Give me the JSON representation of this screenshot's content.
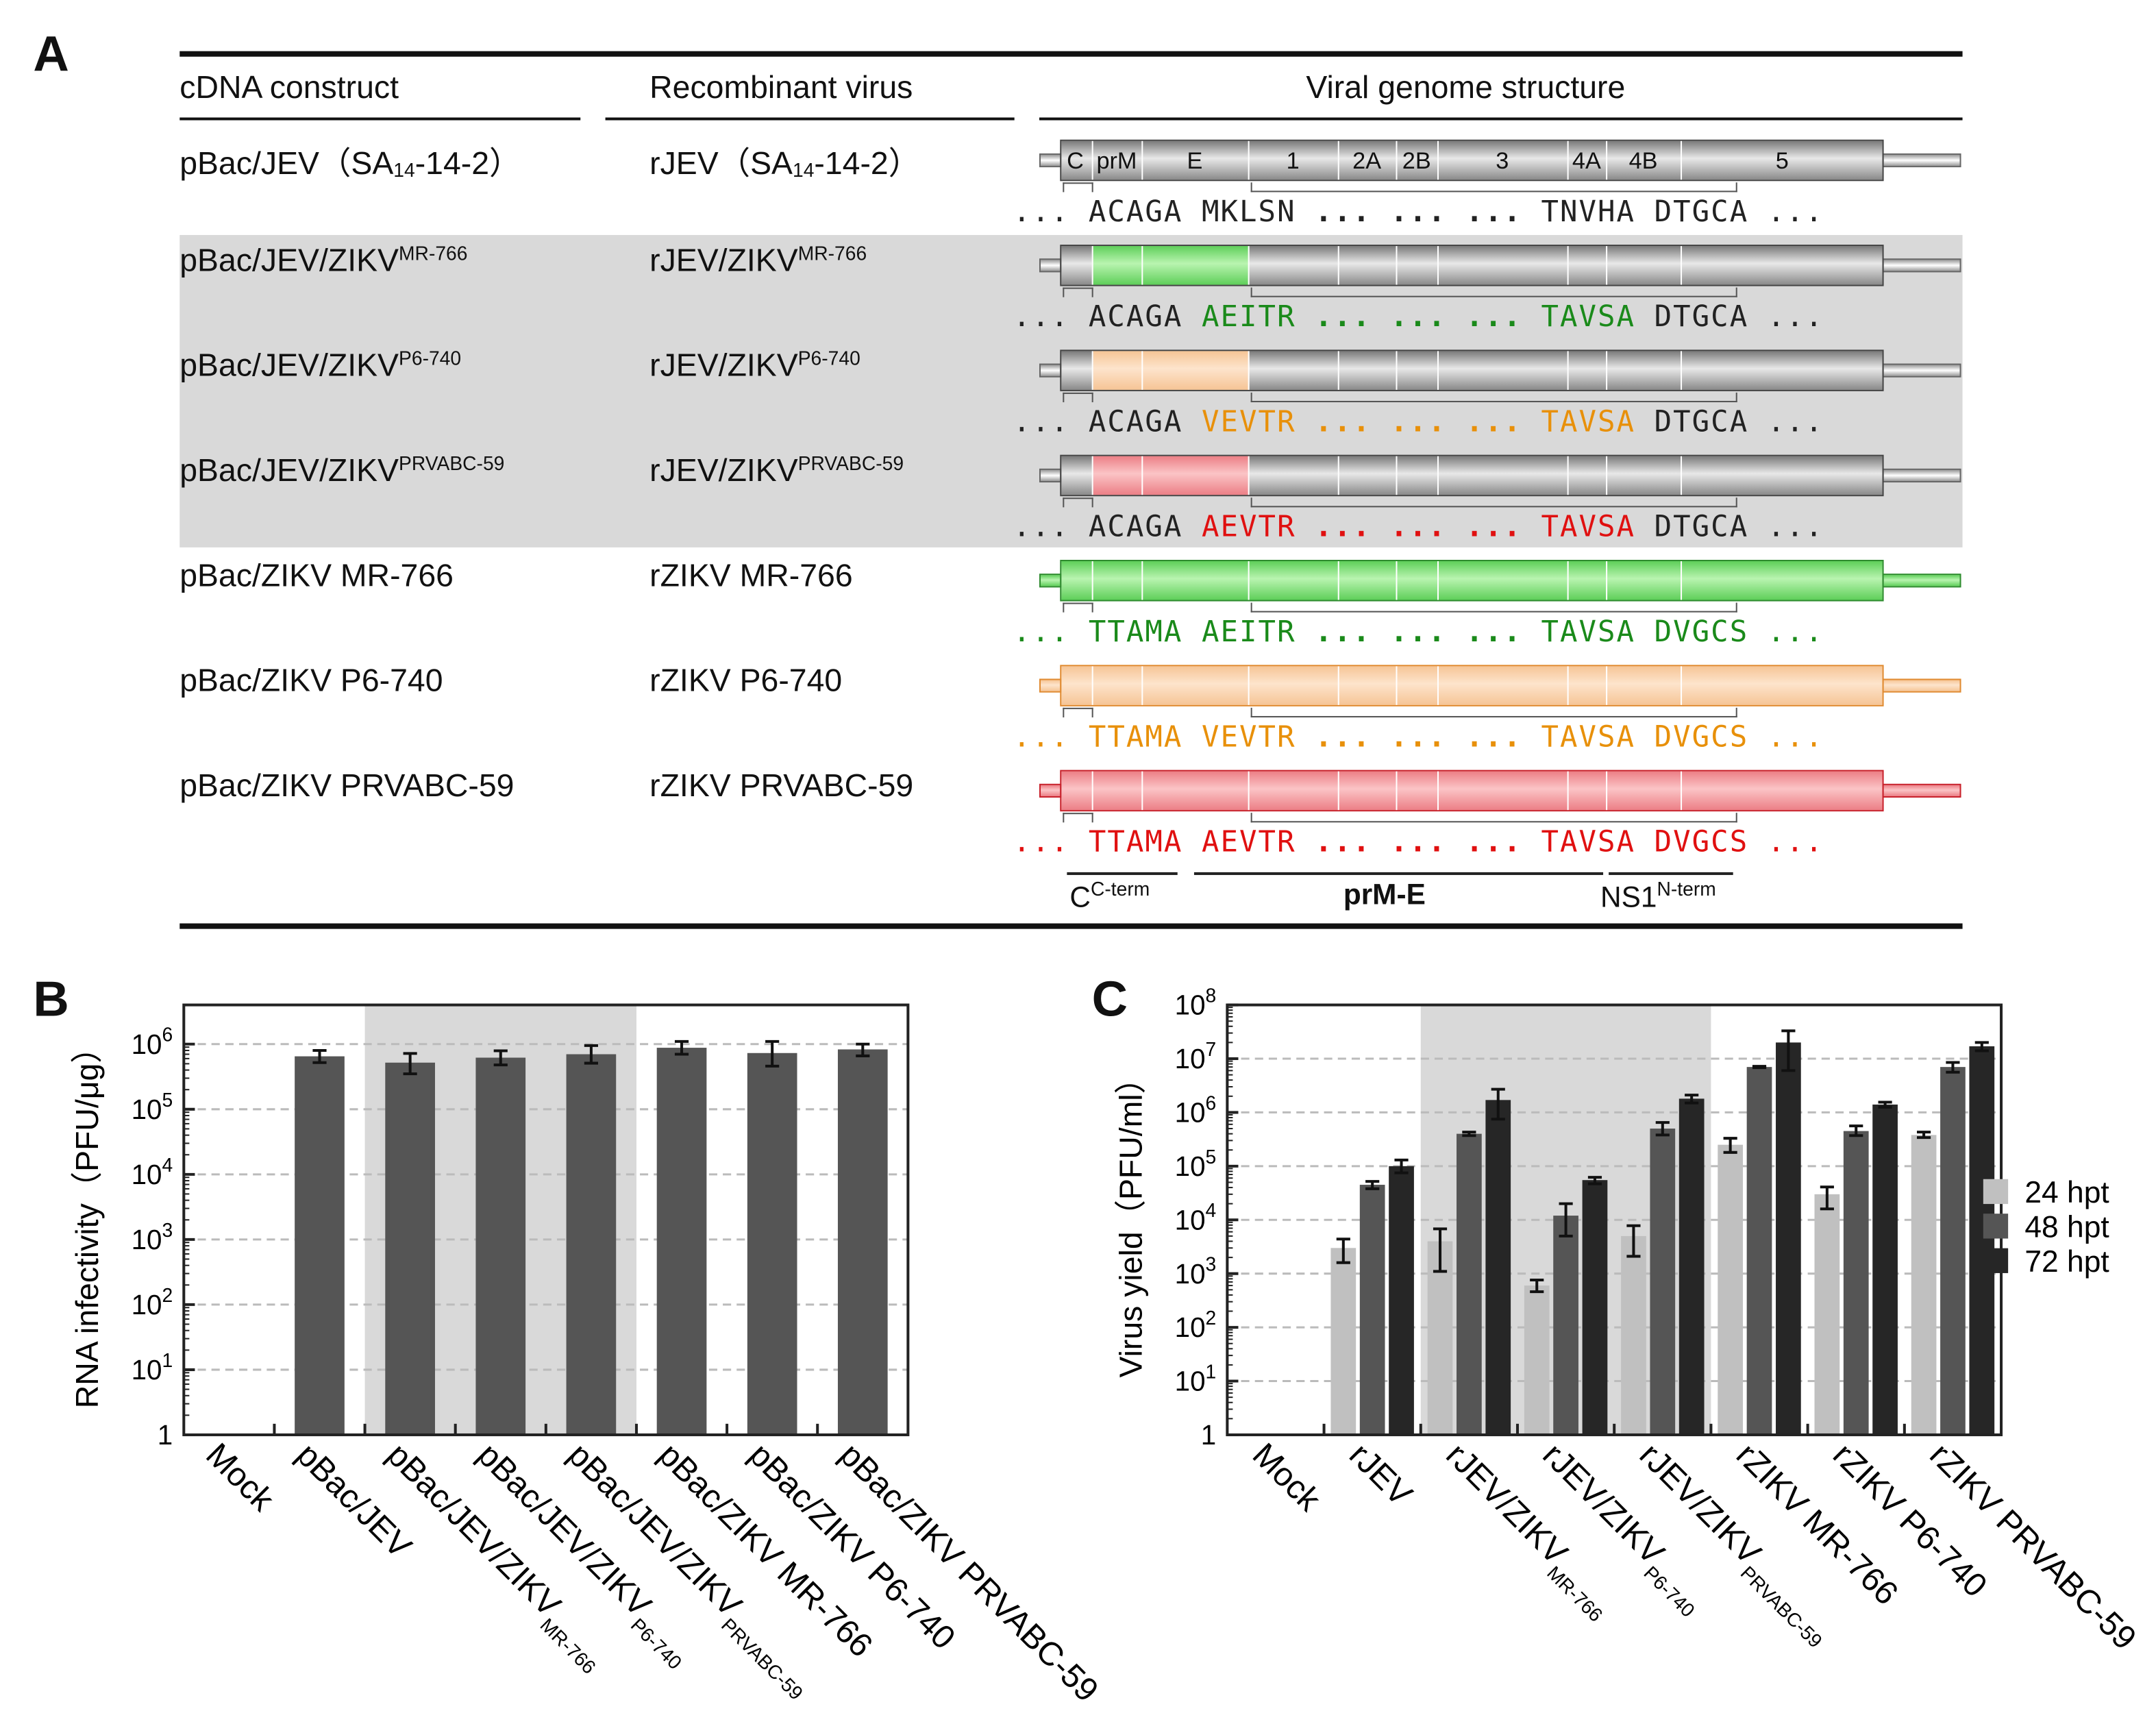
{
  "panel_a": {
    "letter": "A",
    "headers": {
      "construct": "cDNA construct",
      "virus": "Recombinant virus",
      "genome": "Viral genome structure"
    },
    "segments": [
      "C",
      "prM",
      "E",
      "1",
      "2A",
      "2B",
      "3",
      "4A",
      "4B",
      "5"
    ],
    "rows": [
      {
        "construct": "pBac/JEV（SA",
        "construct_sub": "14",
        "construct_tail": "-14-2）",
        "virus": "rJEV（SA",
        "virus_sub": "14",
        "virus_tail": "-14-2）",
        "genome": "jev",
        "color": "#888888",
        "seq": [
          "...",
          "ACAGA",
          "MKLSN",
          "... ... ...",
          "TNVHA",
          "DTGCA",
          "..."
        ],
        "seq_colored": [
          false,
          false,
          false,
          false,
          false,
          false,
          false
        ]
      },
      {
        "construct": "pBac/JEV/ZIKV",
        "construct_sup": "MR-766",
        "virus": "rJEV/ZIKV",
        "virus_sup": "MR-766",
        "genome": "chimera",
        "color": "#1a8a1a",
        "seq": [
          "...",
          "ACAGA",
          "AEITR",
          "... ... ...",
          "TAVSA",
          "DTGCA",
          "..."
        ],
        "seq_colored": [
          false,
          false,
          true,
          true,
          true,
          false,
          false
        ]
      },
      {
        "construct": "pBac/JEV/ZIKV",
        "construct_sup": "P6-740",
        "virus": "rJEV/ZIKV",
        "virus_sup": "P6-740",
        "genome": "chimera",
        "color": "#e8900a",
        "seq": [
          "...",
          "ACAGA",
          "VEVTR",
          "... ... ...",
          "TAVSA",
          "DTGCA",
          "..."
        ],
        "seq_colored": [
          false,
          false,
          true,
          true,
          true,
          false,
          false
        ]
      },
      {
        "construct": "pBac/JEV/ZIKV",
        "construct_sup": "PRVABC-59",
        "virus": "rJEV/ZIKV",
        "virus_sup": "PRVABC-59",
        "genome": "chimera",
        "color": "#e01010",
        "seq": [
          "...",
          "ACAGA",
          "AEVTR",
          "... ... ...",
          "TAVSA",
          "DTGCA",
          "..."
        ],
        "seq_colored": [
          false,
          false,
          true,
          true,
          true,
          false,
          false
        ]
      },
      {
        "construct": "pBac/ZIKV MR-766",
        "virus": "rZIKV MR-766",
        "genome": "zikv",
        "color": "#1a8a1a",
        "seq": [
          "...",
          "TTAMA",
          "AEITR",
          "... ... ...",
          "TAVSA",
          "DVGCS",
          "..."
        ],
        "seq_colored": [
          true,
          true,
          true,
          true,
          true,
          true,
          true
        ]
      },
      {
        "construct": "pBac/ZIKV P6-740",
        "virus": "rZIKV P6-740",
        "genome": "zikv",
        "color": "#e8900a",
        "seq": [
          "...",
          "TTAMA",
          "VEVTR",
          "... ... ...",
          "TAVSA",
          "DVGCS",
          "..."
        ],
        "seq_colored": [
          true,
          true,
          true,
          true,
          true,
          true,
          true
        ]
      },
      {
        "construct": "pBac/ZIKV PRVABC-59",
        "virus": "rZIKV PRVABC-59",
        "genome": "zikv",
        "color": "#e01010",
        "seq": [
          "...",
          "TTAMA",
          "AEVTR",
          "... ... ...",
          "TAVSA",
          "DVGCS",
          "..."
        ],
        "seq_colored": [
          true,
          true,
          true,
          true,
          true,
          true,
          true
        ]
      }
    ],
    "region_labels": {
      "c": "C",
      "c_sup": "C-term",
      "prme": "prM-E",
      "ns1": "NS1",
      "ns1_sup": "N-term"
    }
  },
  "chart_data": [
    {
      "panel": "B",
      "type": "bar",
      "ylabel": "RNA infectivity（PFU/μg）",
      "yscale": "log",
      "ylim": [
        1,
        4000000
      ],
      "yticks": [
        "1",
        "10^1",
        "10^2",
        "10^3",
        "10^4",
        "10^5",
        "10^6"
      ],
      "grid": "dashed horizontal",
      "categories": [
        {
          "label": "Mock"
        },
        {
          "label": "pBac/JEV"
        },
        {
          "label": "pBac/JEV/ZIKV",
          "sup": "MR-766"
        },
        {
          "label": "pBac/JEV/ZIKV",
          "sup": "P6-740"
        },
        {
          "label": "pBac/JEV/ZIKV",
          "sup": "PRVABC-59"
        },
        {
          "label": "pBac/ZIKV MR-766"
        },
        {
          "label": "pBac/ZIKV P6-740"
        },
        {
          "label": "pBac/ZIKV PRVABC-59"
        }
      ],
      "values": [
        null,
        650000,
        520000,
        620000,
        700000,
        880000,
        730000,
        830000
      ],
      "err_low": [
        null,
        520000,
        350000,
        480000,
        510000,
        700000,
        460000,
        660000
      ],
      "err_high": [
        null,
        800000,
        720000,
        790000,
        950000,
        1100000,
        1100000,
        1000000
      ],
      "shaded_categories": [
        2,
        4
      ],
      "bar_color": "#555555"
    },
    {
      "panel": "C",
      "type": "bar",
      "ylabel": "Virus yield（PFU/ml）",
      "yscale": "log",
      "ylim": [
        1,
        100000000
      ],
      "yticks": [
        "1",
        "10^1",
        "10^2",
        "10^3",
        "10^4",
        "10^5",
        "10^6",
        "10^7",
        "10^8"
      ],
      "grid": "dashed horizontal",
      "legend_position": "right",
      "categories": [
        {
          "label": "Mock"
        },
        {
          "label": "rJEV"
        },
        {
          "label": "rJEV/ZIKV",
          "sup": "MR-766"
        },
        {
          "label": "rJEV/ZIKV",
          "sup": "P6-740"
        },
        {
          "label": "rJEV/ZIKV",
          "sup": "PRVABC-59"
        },
        {
          "label": "rZIKV MR-766"
        },
        {
          "label": "rZIKV P6-740"
        },
        {
          "label": "rZIKV PRVABC-59"
        }
      ],
      "shaded_categories": [
        2,
        4
      ],
      "series": [
        {
          "name": "24 hpt",
          "color": "#c0c0c0",
          "values": [
            null,
            3000,
            4000,
            600,
            5000,
            250000,
            30000,
            380000
          ],
          "err_low": [
            null,
            1600,
            1100,
            460,
            2100,
            180000,
            16000,
            340000
          ],
          "err_high": [
            null,
            4400,
            6800,
            760,
            7800,
            330000,
            41000,
            430000
          ]
        },
        {
          "name": "48 hpt",
          "color": "#555555",
          "values": [
            null,
            45000,
            400000,
            12000,
            500000,
            7000000,
            450000,
            7000000
          ],
          "err_low": [
            null,
            38000,
            370000,
            5000,
            380000,
            6800000,
            370000,
            5600000
          ],
          "err_high": [
            null,
            52000,
            430000,
            20000,
            650000,
            7200000,
            560000,
            8500000
          ]
        },
        {
          "name": "72 hpt",
          "color": "#262626",
          "values": [
            null,
            100000,
            1700000,
            55000,
            1800000,
            20000000,
            1400000,
            17000000
          ],
          "err_low": [
            null,
            75000,
            750000,
            47000,
            1500000,
            6000000,
            1250000,
            14000000
          ],
          "err_high": [
            null,
            130000,
            2700000,
            62000,
            2100000,
            33000000,
            1550000,
            20000000
          ]
        }
      ]
    }
  ],
  "panel_b_letter": "B",
  "panel_c_letter": "C"
}
